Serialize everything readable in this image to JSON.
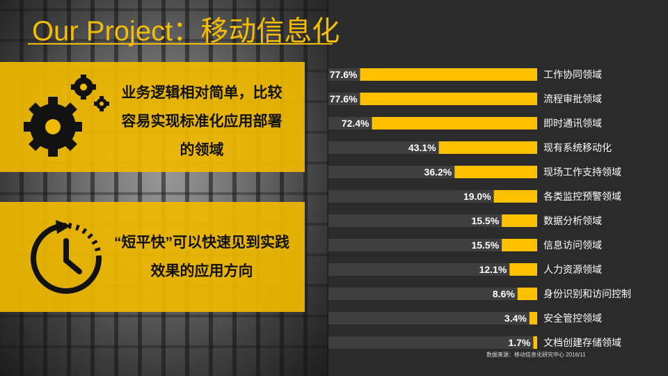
{
  "title": "Our Project：移动信息化",
  "cards": [
    {
      "text": "业务逻辑相对简单，比较容易实现标准化应用部署的领域"
    },
    {
      "text": "“短平快”可以快速见到实践效果的应用方向"
    }
  ],
  "source": "数据来源：移动信息化研究中心 2016/11",
  "colors": {
    "accent": "#f5bd00",
    "bar": "#ffc000",
    "track": "#3f3f3f",
    "background": "#2b2b2b"
  },
  "icons": [
    "gear-icon",
    "timer-icon"
  ],
  "chart_data": {
    "type": "bar",
    "orientation": "horizontal",
    "categories": [
      "工作协同领域",
      "流程审批领域",
      "即时通讯领域",
      "现有系统移动化",
      "现场工作支持领域",
      "各类监控预警领域",
      "数据分析领域",
      "信息访问领域",
      "人力资源领域",
      "身份识别和访问控制",
      "安全管控领域",
      "文档创建存储领域"
    ],
    "values": [
      77.6,
      77.6,
      72.4,
      43.1,
      36.2,
      19.0,
      15.5,
      15.5,
      12.1,
      8.6,
      3.4,
      1.7
    ],
    "value_labels": [
      "77.6%",
      "77.6%",
      "72.4%",
      "43.1%",
      "36.2%",
      "19.0%",
      "15.5%",
      "15.5%",
      "12.1%",
      "8.6%",
      "3.4%",
      "1.7%"
    ],
    "xlim": [
      0,
      100
    ],
    "grid": false,
    "legend": "none"
  }
}
